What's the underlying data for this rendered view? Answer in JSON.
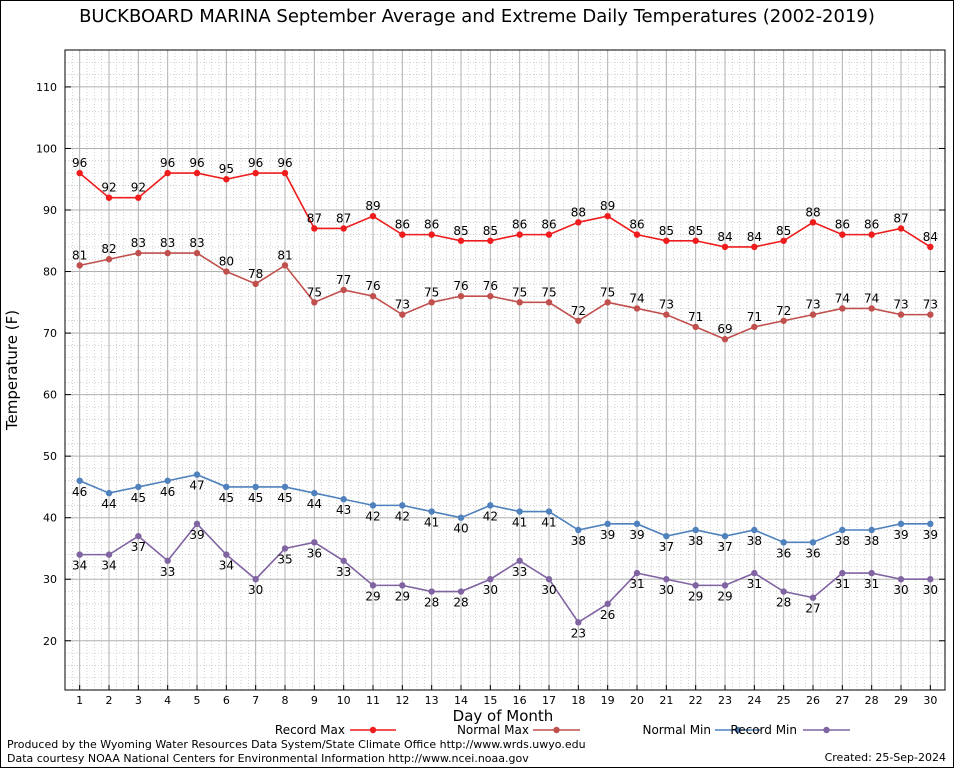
{
  "chart_data": {
    "type": "line",
    "title": "BUCKBOARD MARINA September Average and Extreme Daily Temperatures (2002-2019)",
    "xlabel": "Day of Month",
    "ylabel": "Temperature (F)",
    "x": [
      1,
      2,
      3,
      4,
      5,
      6,
      7,
      8,
      9,
      10,
      11,
      12,
      13,
      14,
      15,
      16,
      17,
      18,
      19,
      20,
      21,
      22,
      23,
      24,
      25,
      26,
      27,
      28,
      29,
      30
    ],
    "xlim": [
      0.5,
      30.5
    ],
    "ylim": [
      12,
      116
    ],
    "yticks": [
      20,
      30,
      40,
      50,
      60,
      70,
      80,
      90,
      100,
      110
    ],
    "grid": true,
    "legend_position": "bottom",
    "series": [
      {
        "name": "Record Max",
        "color": "#ee1c1c",
        "values": [
          96,
          92,
          92,
          96,
          96,
          95,
          96,
          96,
          87,
          87,
          89,
          86,
          86,
          85,
          85,
          86,
          86,
          88,
          89,
          86,
          85,
          85,
          84,
          84,
          85,
          88,
          86,
          86,
          87,
          84
        ]
      },
      {
        "name": "Normal Max",
        "color": "#c0504d",
        "values": [
          81,
          82,
          83,
          83,
          83,
          80,
          78,
          81,
          75,
          77,
          76,
          73,
          75,
          76,
          76,
          75,
          75,
          72,
          75,
          74,
          73,
          71,
          69,
          71,
          72,
          73,
          74,
          74,
          73,
          73
        ]
      },
      {
        "name": "Normal Min",
        "color": "#4f81bd",
        "values": [
          46,
          44,
          45,
          46,
          47,
          45,
          45,
          45,
          44,
          43,
          42,
          42,
          41,
          40,
          42,
          41,
          41,
          38,
          39,
          39,
          37,
          38,
          37,
          38,
          36,
          36,
          38,
          38,
          39,
          39
        ]
      },
      {
        "name": "Record Min",
        "color": "#8064a2",
        "values": [
          34,
          34,
          37,
          33,
          39,
          34,
          30,
          35,
          36,
          33,
          29,
          29,
          28,
          28,
          30,
          33,
          30,
          23,
          26,
          31,
          30,
          29,
          29,
          31,
          28,
          27,
          31,
          31,
          30,
          30
        ]
      }
    ]
  },
  "footer": {
    "line1": "Produced by the Wyoming Water Resources Data System/State Climate Office http://www.wrds.uwyo.edu",
    "line2": "Data courtesy NOAA National Centers for Environmental Information http://www.ncei.noaa.gov",
    "created": "Created:  25-Sep-2024"
  }
}
